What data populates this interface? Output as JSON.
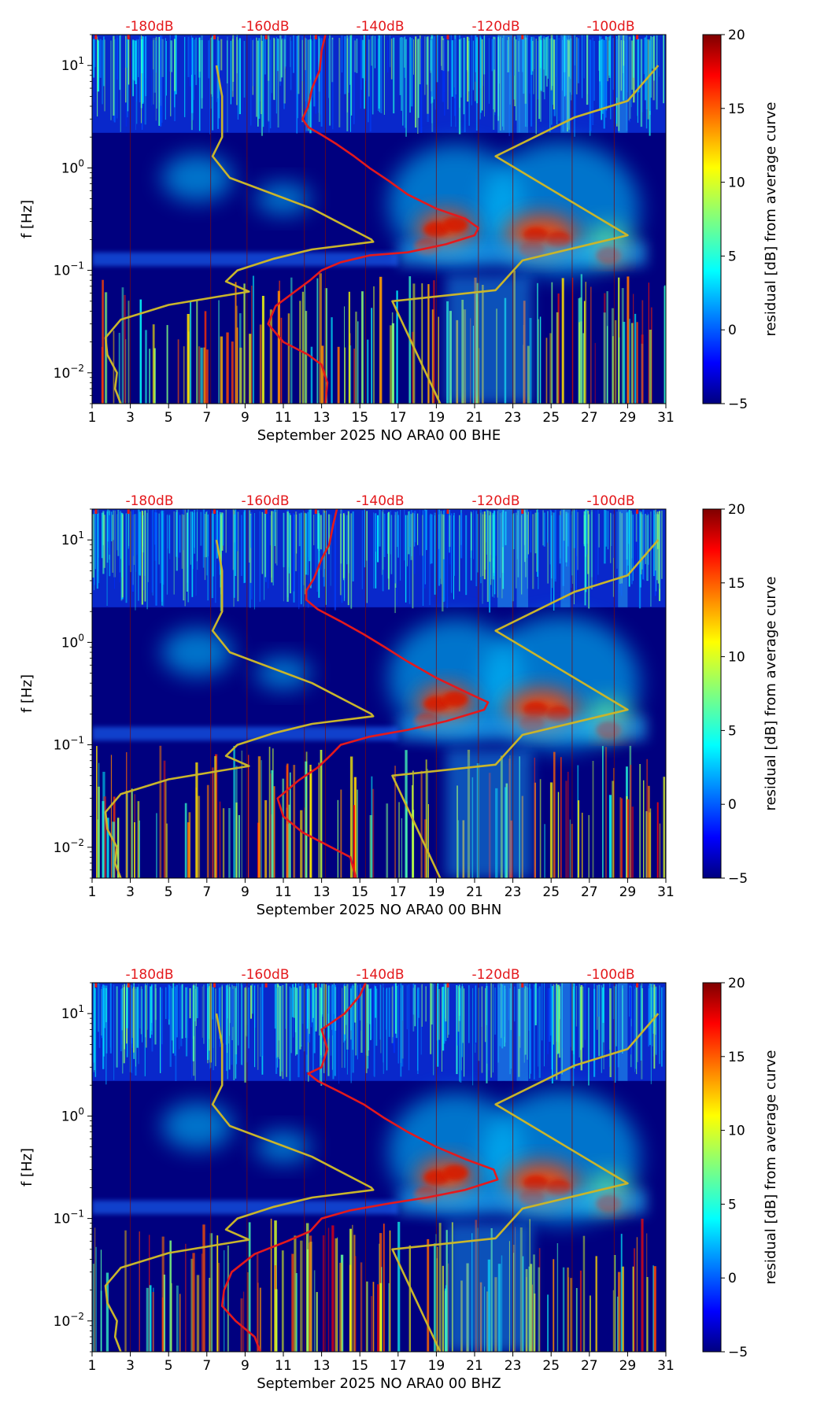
{
  "chart_data": [
    {
      "type": "heatmap",
      "xlabel": "September 2025 NO ARA0 00 BHE",
      "ylabel": "f [Hz]",
      "x_ticks": [
        "1",
        "3",
        "5",
        "7",
        "9",
        "11",
        "13",
        "15",
        "17",
        "19",
        "21",
        "23",
        "25",
        "27",
        "29",
        "31"
      ],
      "xlim": [
        1,
        31
      ],
      "ylim": [
        0.005,
        20
      ],
      "y_scale": "log",
      "y_ticks": [
        "10^-2",
        "10^-1",
        "10^0",
        "10^1"
      ],
      "db_axis_labels": [
        "-180dB",
        "-160dB",
        "-140dB",
        "-120dB",
        "-100dB"
      ],
      "colorbar": {
        "label": "residual [dB] from average curve",
        "ticks": [
          "20",
          "15",
          "10",
          "5",
          "0",
          "-5"
        ],
        "range": [
          -5,
          20
        ]
      },
      "series": [
        {
          "color": "#e4191c",
          "values_day_vs_freq": [
            [
              13.2,
              0.005
            ],
            [
              13.3,
              0.008
            ],
            [
              13.0,
              0.012
            ],
            [
              12.3,
              0.015
            ],
            [
              11.0,
              0.02
            ],
            [
              10.2,
              0.03
            ],
            [
              10.6,
              0.045
            ],
            [
              11.5,
              0.06
            ],
            [
              12.4,
              0.08
            ],
            [
              13.0,
              0.1
            ],
            [
              14.0,
              0.12
            ],
            [
              15.5,
              0.14
            ],
            [
              17.5,
              0.15
            ],
            [
              19.5,
              0.18
            ],
            [
              21.0,
              0.22
            ],
            [
              21.2,
              0.26
            ],
            [
              20.5,
              0.32
            ],
            [
              19.0,
              0.4
            ],
            [
              17.5,
              0.55
            ],
            [
              16.5,
              0.75
            ],
            [
              15.5,
              1.0
            ],
            [
              14.7,
              1.3
            ],
            [
              13.8,
              1.7
            ],
            [
              13.0,
              2.1
            ],
            [
              12.3,
              2.5
            ],
            [
              12.0,
              3.0
            ],
            [
              12.3,
              4.0
            ],
            [
              12.5,
              6.0
            ],
            [
              12.9,
              9.0
            ],
            [
              13.0,
              14.0
            ],
            [
              13.2,
              20.0
            ]
          ]
        },
        {
          "color": "#c9b52b",
          "values_day_vs_freq": [
            [
              2.5,
              0.005
            ],
            [
              2.2,
              0.007
            ],
            [
              2.3,
              0.01
            ],
            [
              1.8,
              0.015
            ],
            [
              1.7,
              0.022
            ],
            [
              2.5,
              0.033
            ],
            [
              5.0,
              0.046
            ],
            [
              7.5,
              0.055
            ],
            [
              9.2,
              0.062
            ],
            [
              8.0,
              0.078
            ],
            [
              8.6,
              0.1
            ],
            [
              10.5,
              0.13
            ],
            [
              12.5,
              0.16
            ],
            [
              15.7,
              0.19
            ],
            [
              15.6,
              0.2
            ],
            [
              12.5,
              0.4
            ],
            [
              8.2,
              0.8
            ],
            [
              7.3,
              1.3
            ],
            [
              7.8,
              2.0
            ],
            [
              7.8,
              5.0
            ],
            [
              7.5,
              10.0
            ]
          ]
        },
        {
          "color": "#c9b52b",
          "values_day_vs_freq": [
            [
              19.2,
              0.005
            ],
            [
              16.7,
              0.05
            ],
            [
              22.1,
              0.064
            ],
            [
              23.5,
              0.125
            ],
            [
              29.0,
              0.22
            ],
            [
              22.1,
              1.3
            ],
            [
              26.2,
              3.1
            ],
            [
              29.0,
              4.5
            ],
            [
              30.6,
              10.0
            ]
          ]
        }
      ]
    },
    {
      "type": "heatmap",
      "xlabel": "September 2025 NO ARA0 00 BHN",
      "ylabel": "f [Hz]",
      "x_ticks": [
        "1",
        "3",
        "5",
        "7",
        "9",
        "11",
        "13",
        "15",
        "17",
        "19",
        "21",
        "23",
        "25",
        "27",
        "29",
        "31"
      ],
      "xlim": [
        1,
        31
      ],
      "ylim": [
        0.005,
        20
      ],
      "y_scale": "log",
      "y_ticks": [
        "10^-2",
        "10^-1",
        "10^0",
        "10^1"
      ],
      "db_axis_labels": [
        "-180dB",
        "-160dB",
        "-140dB",
        "-120dB",
        "-100dB"
      ],
      "colorbar": {
        "label": "residual [dB] from average curve",
        "ticks": [
          "20",
          "15",
          "10",
          "5",
          "0",
          "-5"
        ],
        "range": [
          -5,
          20
        ]
      },
      "series": [
        {
          "color": "#e4191c",
          "values_day_vs_freq": [
            [
              14.8,
              0.005
            ],
            [
              14.5,
              0.008
            ],
            [
              13.5,
              0.01
            ],
            [
              12.0,
              0.014
            ],
            [
              11.0,
              0.02
            ],
            [
              10.7,
              0.03
            ],
            [
              11.8,
              0.045
            ],
            [
              12.8,
              0.06
            ],
            [
              13.5,
              0.08
            ],
            [
              14.0,
              0.1
            ],
            [
              15.5,
              0.12
            ],
            [
              17.5,
              0.14
            ],
            [
              19.5,
              0.17
            ],
            [
              21.5,
              0.22
            ],
            [
              21.7,
              0.26
            ],
            [
              20.5,
              0.33
            ],
            [
              19.0,
              0.45
            ],
            [
              17.5,
              0.65
            ],
            [
              16.3,
              0.9
            ],
            [
              15.2,
              1.2
            ],
            [
              14.0,
              1.6
            ],
            [
              12.8,
              2.1
            ],
            [
              12.2,
              2.6
            ],
            [
              12.2,
              3.2
            ],
            [
              12.6,
              4.2
            ],
            [
              13.0,
              6.5
            ],
            [
              13.4,
              9.0
            ],
            [
              13.6,
              14.0
            ],
            [
              13.8,
              20.0
            ]
          ]
        },
        {
          "color": "#c9b52b",
          "values_day_vs_freq": [
            [
              2.5,
              0.005
            ],
            [
              2.2,
              0.007
            ],
            [
              2.3,
              0.01
            ],
            [
              1.8,
              0.015
            ],
            [
              1.7,
              0.022
            ],
            [
              2.5,
              0.033
            ],
            [
              5.0,
              0.046
            ],
            [
              7.5,
              0.055
            ],
            [
              9.2,
              0.062
            ],
            [
              8.0,
              0.078
            ],
            [
              8.6,
              0.1
            ],
            [
              10.5,
              0.13
            ],
            [
              12.5,
              0.16
            ],
            [
              15.7,
              0.19
            ],
            [
              15.6,
              0.2
            ],
            [
              12.5,
              0.4
            ],
            [
              8.2,
              0.8
            ],
            [
              7.3,
              1.3
            ],
            [
              7.8,
              2.0
            ],
            [
              7.8,
              5.0
            ],
            [
              7.5,
              10.0
            ]
          ]
        },
        {
          "color": "#c9b52b",
          "values_day_vs_freq": [
            [
              19.2,
              0.005
            ],
            [
              16.7,
              0.05
            ],
            [
              22.1,
              0.064
            ],
            [
              23.5,
              0.125
            ],
            [
              29.0,
              0.22
            ],
            [
              22.1,
              1.3
            ],
            [
              26.2,
              3.1
            ],
            [
              29.0,
              4.5
            ],
            [
              30.6,
              10.0
            ]
          ]
        }
      ]
    },
    {
      "type": "heatmap",
      "xlabel": "September 2025 NO ARA0 00 BHZ",
      "ylabel": "f [Hz]",
      "x_ticks": [
        "1",
        "3",
        "5",
        "7",
        "9",
        "11",
        "13",
        "15",
        "17",
        "19",
        "21",
        "23",
        "25",
        "27",
        "29",
        "31"
      ],
      "xlim": [
        1,
        31
      ],
      "ylim": [
        0.005,
        20
      ],
      "y_scale": "log",
      "y_ticks": [
        "10^-2",
        "10^-1",
        "10^0",
        "10^1"
      ],
      "db_axis_labels": [
        "-180dB",
        "-160dB",
        "-140dB",
        "-120dB",
        "-100dB"
      ],
      "colorbar": {
        "label": "residual [dB] from average curve",
        "ticks": [
          "20",
          "15",
          "10",
          "5",
          "0",
          "-5"
        ],
        "range": [
          -5,
          20
        ]
      },
      "series": [
        {
          "color": "#e4191c",
          "values_day_vs_freq": [
            [
              9.8,
              0.005
            ],
            [
              9.5,
              0.007
            ],
            [
              8.5,
              0.01
            ],
            [
              7.8,
              0.014
            ],
            [
              7.9,
              0.02
            ],
            [
              8.3,
              0.03
            ],
            [
              9.5,
              0.045
            ],
            [
              11.2,
              0.06
            ],
            [
              12.4,
              0.075
            ],
            [
              13.0,
              0.1
            ],
            [
              14.5,
              0.12
            ],
            [
              16.5,
              0.14
            ],
            [
              18.5,
              0.16
            ],
            [
              20.5,
              0.19
            ],
            [
              22.2,
              0.24
            ],
            [
              22.0,
              0.3
            ],
            [
              20.5,
              0.38
            ],
            [
              19.0,
              0.5
            ],
            [
              17.5,
              0.7
            ],
            [
              16.3,
              0.95
            ],
            [
              15.2,
              1.3
            ],
            [
              14.0,
              1.7
            ],
            [
              12.8,
              2.2
            ],
            [
              12.3,
              2.6
            ],
            [
              13.0,
              3.0
            ],
            [
              13.3,
              4.5
            ],
            [
              13.0,
              7.0
            ],
            [
              14.2,
              10.0
            ],
            [
              15.0,
              15.0
            ],
            [
              15.3,
              20.0
            ]
          ]
        },
        {
          "color": "#c9b52b",
          "values_day_vs_freq": [
            [
              2.5,
              0.005
            ],
            [
              2.2,
              0.007
            ],
            [
              2.3,
              0.01
            ],
            [
              1.8,
              0.015
            ],
            [
              1.7,
              0.022
            ],
            [
              2.5,
              0.033
            ],
            [
              5.0,
              0.046
            ],
            [
              7.5,
              0.055
            ],
            [
              9.2,
              0.062
            ],
            [
              8.0,
              0.078
            ],
            [
              8.6,
              0.1
            ],
            [
              10.5,
              0.13
            ],
            [
              12.5,
              0.16
            ],
            [
              15.7,
              0.19
            ],
            [
              15.6,
              0.2
            ],
            [
              12.5,
              0.4
            ],
            [
              8.2,
              0.8
            ],
            [
              7.3,
              1.3
            ],
            [
              7.8,
              2.0
            ],
            [
              7.8,
              5.0
            ],
            [
              7.5,
              10.0
            ]
          ]
        },
        {
          "color": "#c9b52b",
          "values_day_vs_freq": [
            [
              19.2,
              0.005
            ],
            [
              16.7,
              0.05
            ],
            [
              22.1,
              0.064
            ],
            [
              23.5,
              0.125
            ],
            [
              29.0,
              0.22
            ],
            [
              22.1,
              1.3
            ],
            [
              26.2,
              3.1
            ],
            [
              29.0,
              4.5
            ],
            [
              30.6,
              10.0
            ]
          ]
        }
      ]
    }
  ],
  "colors": {
    "db_label": "#e4191c",
    "noise_model": "#c9b52b",
    "median_curve": "#e4191c",
    "background": "#00007f"
  }
}
